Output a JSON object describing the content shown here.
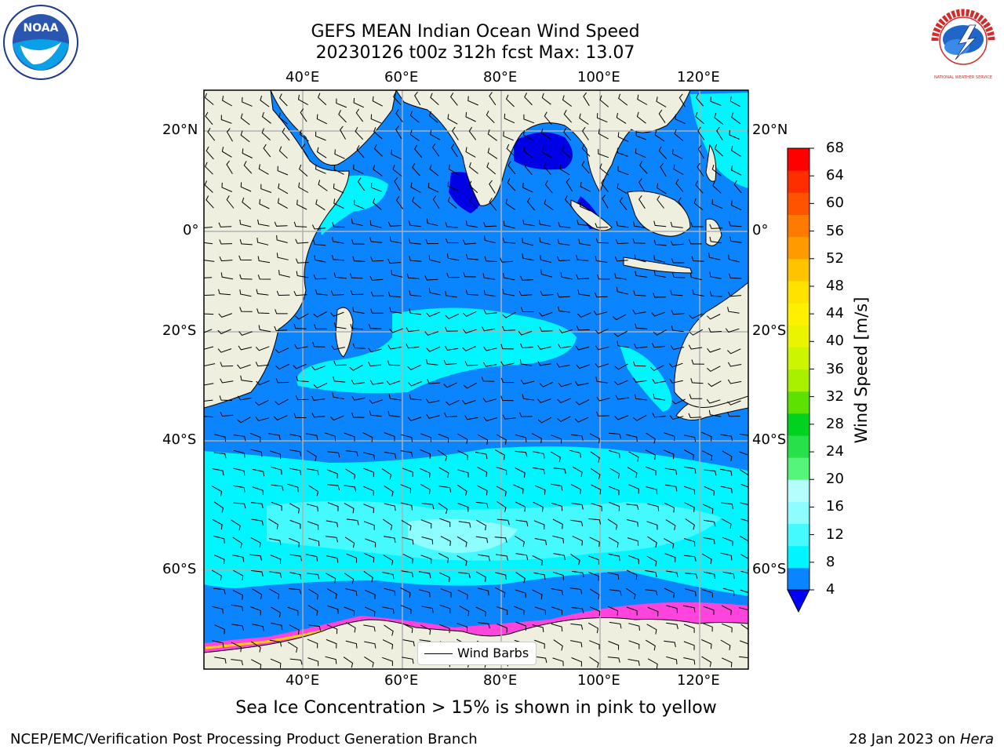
{
  "title": {
    "line1": "GEFS MEAN Indian Ocean Wind Speed",
    "line2": "20230126 t00z 312h fcst   Max: 13.07"
  },
  "map": {
    "lon_labels": [
      "40°E",
      "60°E",
      "80°E",
      "100°E",
      "120°E"
    ],
    "lat_labels": [
      "20°N",
      "0°",
      "20°S",
      "40°S",
      "60°S"
    ],
    "lon_values": [
      40,
      60,
      80,
      100,
      120
    ],
    "lat_values": [
      20,
      0,
      -20,
      -40,
      -60
    ],
    "extent": {
      "lon": [
        20,
        130
      ],
      "lat": [
        -73,
        28
      ]
    },
    "land_color": "#efefdf",
    "ocean_colors": {
      "4-8": "#0a84ff",
      "8-12": "#00f5ff",
      "12-16": "#5cfaff",
      "16-20": "#a6fdff",
      "ice": "#ff44dd"
    }
  },
  "legend": {
    "label": "Wind Barbs"
  },
  "colorbar": {
    "title": "Wind Speed [m/s]",
    "ticks": [
      "4",
      "8",
      "12",
      "16",
      "20",
      "24",
      "28",
      "32",
      "36",
      "40",
      "44",
      "48",
      "52",
      "56",
      "60",
      "64",
      "68"
    ],
    "colors": [
      "#0a84ff",
      "#00f5ff",
      "#45faff",
      "#8efdff",
      "#b4fffe",
      "#54f57a",
      "#26e14a",
      "#00d21e",
      "#5ce100",
      "#a8f000",
      "#ccf500",
      "#eaf400",
      "#fff000",
      "#ffe200",
      "#ffc300",
      "#ff9a00",
      "#ff7a00",
      "#ff5300",
      "#ff2e00",
      "#ff0000"
    ],
    "extend_color": "#0000ff"
  },
  "logos": {
    "left": "NOAA",
    "right": "NATIONAL WEATHER SERVICE"
  },
  "caption": "Sea Ice Concentration > 15% is shown in pink to yellow",
  "footer": {
    "left": "NCEP/EMC/Verification Post Processing Product Generation Branch",
    "right_date": "28 Jan 2023 on ",
    "right_host": "Hera"
  }
}
